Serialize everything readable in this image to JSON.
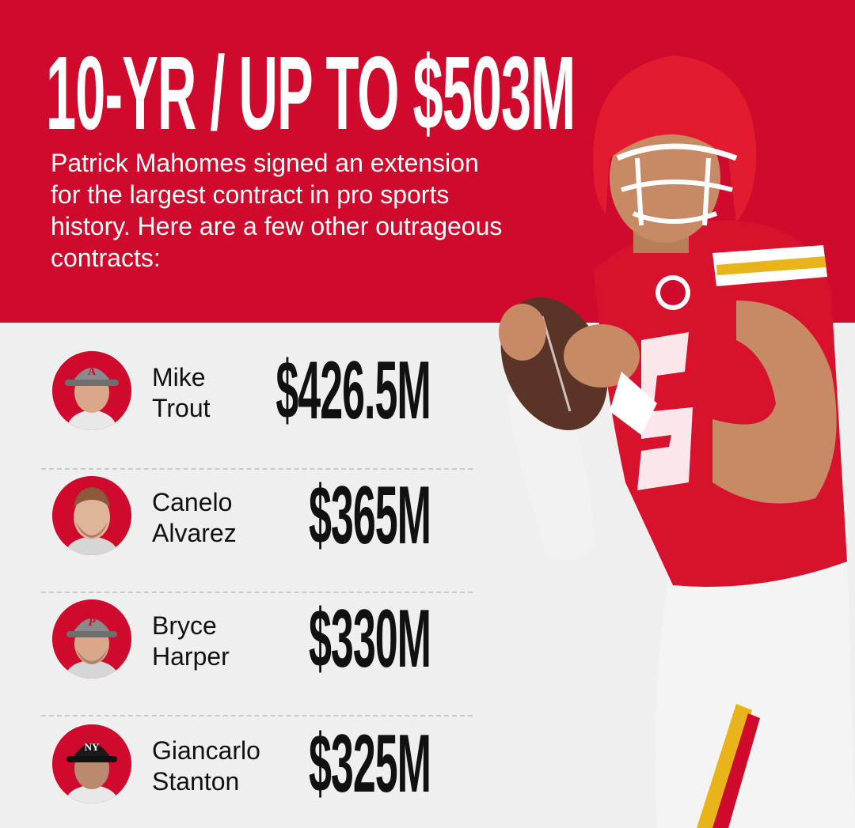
{
  "headline": "10-YR / UP TO $503M",
  "subtitle": "Patrick Mahomes signed an extension for the largest contract in pro sports history. Here are a few other outrageous contracts:",
  "contracts": [
    {
      "first": "Mike",
      "last": "Trout",
      "amount": "$426.5M",
      "cap": "angels"
    },
    {
      "first": "Canelo",
      "last": "Alvarez",
      "amount": "$365M",
      "cap": "none"
    },
    {
      "first": "Bryce",
      "last": "Harper",
      "amount": "$330M",
      "cap": "phillies"
    },
    {
      "first": "Giancarlo",
      "last": "Stanton",
      "amount": "$325M",
      "cap": "yankees"
    }
  ],
  "colors": {
    "red": "#cf0a2c",
    "background": "#efefef",
    "text": "#111111"
  },
  "icons": [
    "player-photo-mahomes",
    "avatar-trout",
    "avatar-alvarez",
    "avatar-harper",
    "avatar-stanton"
  ]
}
